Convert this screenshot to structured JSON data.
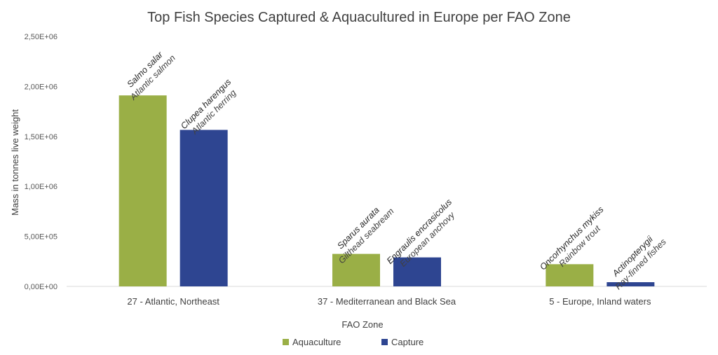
{
  "chart_data": {
    "type": "bar",
    "title": "Top Fish Species Captured & Aquacultured in Europe per FAO Zone",
    "xlabel": "FAO Zone",
    "ylabel": "Mass in tonnes live weight",
    "ylim": [
      0,
      2500000
    ],
    "yticks": [
      "0,00E+00",
      "5,00E+05",
      "1,00E+06",
      "1,50E+06",
      "2,00E+06",
      "2,50E+06"
    ],
    "categories": [
      "27 - Atlantic, Northeast",
      "37 - Mediterranean and Black Sea",
      "5 - Europe, Inland waters"
    ],
    "grid": false,
    "legend_position": "bottom",
    "series": [
      {
        "name": "Aquaculture",
        "color": "#9aaf46",
        "values": [
          1910000,
          325000,
          222000
        ],
        "labels": [
          {
            "scientific": "Salmo salar",
            "common": "Atlantic salmon"
          },
          {
            "scientific": "Sparus aurata",
            "common": "Gilthead seabream"
          },
          {
            "scientific": "Oncorhynchus mykiss",
            "common": "Rainbow trout"
          }
        ]
      },
      {
        "name": "Capture",
        "color": "#2e4591",
        "values": [
          1565000,
          290000,
          42000
        ],
        "labels": [
          {
            "scientific": "Clupea harengus",
            "common": "Atlantic herring"
          },
          {
            "scientific": "Engraulis encrasicolus",
            "common": "European anchovy"
          },
          {
            "scientific": "Actinopterygii",
            "common": "Ray-finned fishes"
          }
        ]
      }
    ]
  }
}
